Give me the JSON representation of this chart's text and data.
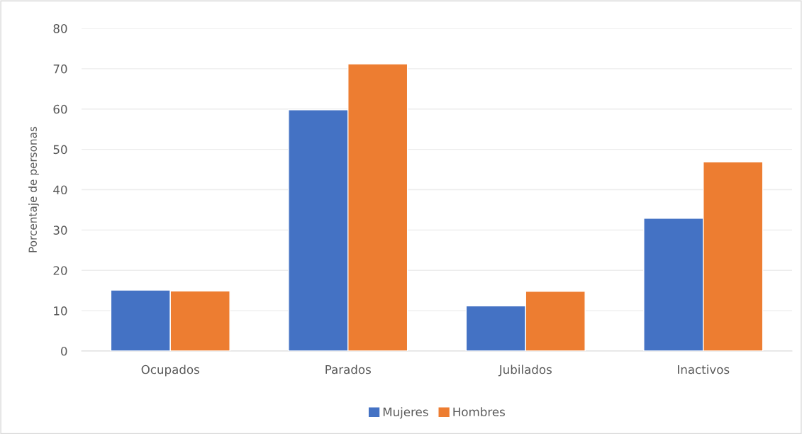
{
  "chart_data": {
    "type": "bar",
    "ylabel": "Porcentaje de personas",
    "categories": [
      "Ocupados",
      "Parados",
      "Jubilados",
      "Inactivos"
    ],
    "series": [
      {
        "name": "Mujeres",
        "color": "#4472c4",
        "values": [
          15.1,
          59.8,
          11.2,
          32.9
        ]
      },
      {
        "name": "Hombres",
        "color": "#ed7d31",
        "values": [
          14.9,
          71.2,
          14.8,
          46.9
        ]
      }
    ],
    "ylim": [
      0,
      80
    ],
    "yticks": [
      0,
      10,
      20,
      30,
      40,
      50,
      60,
      70,
      80
    ],
    "grid": "y",
    "legend": "bottom"
  }
}
